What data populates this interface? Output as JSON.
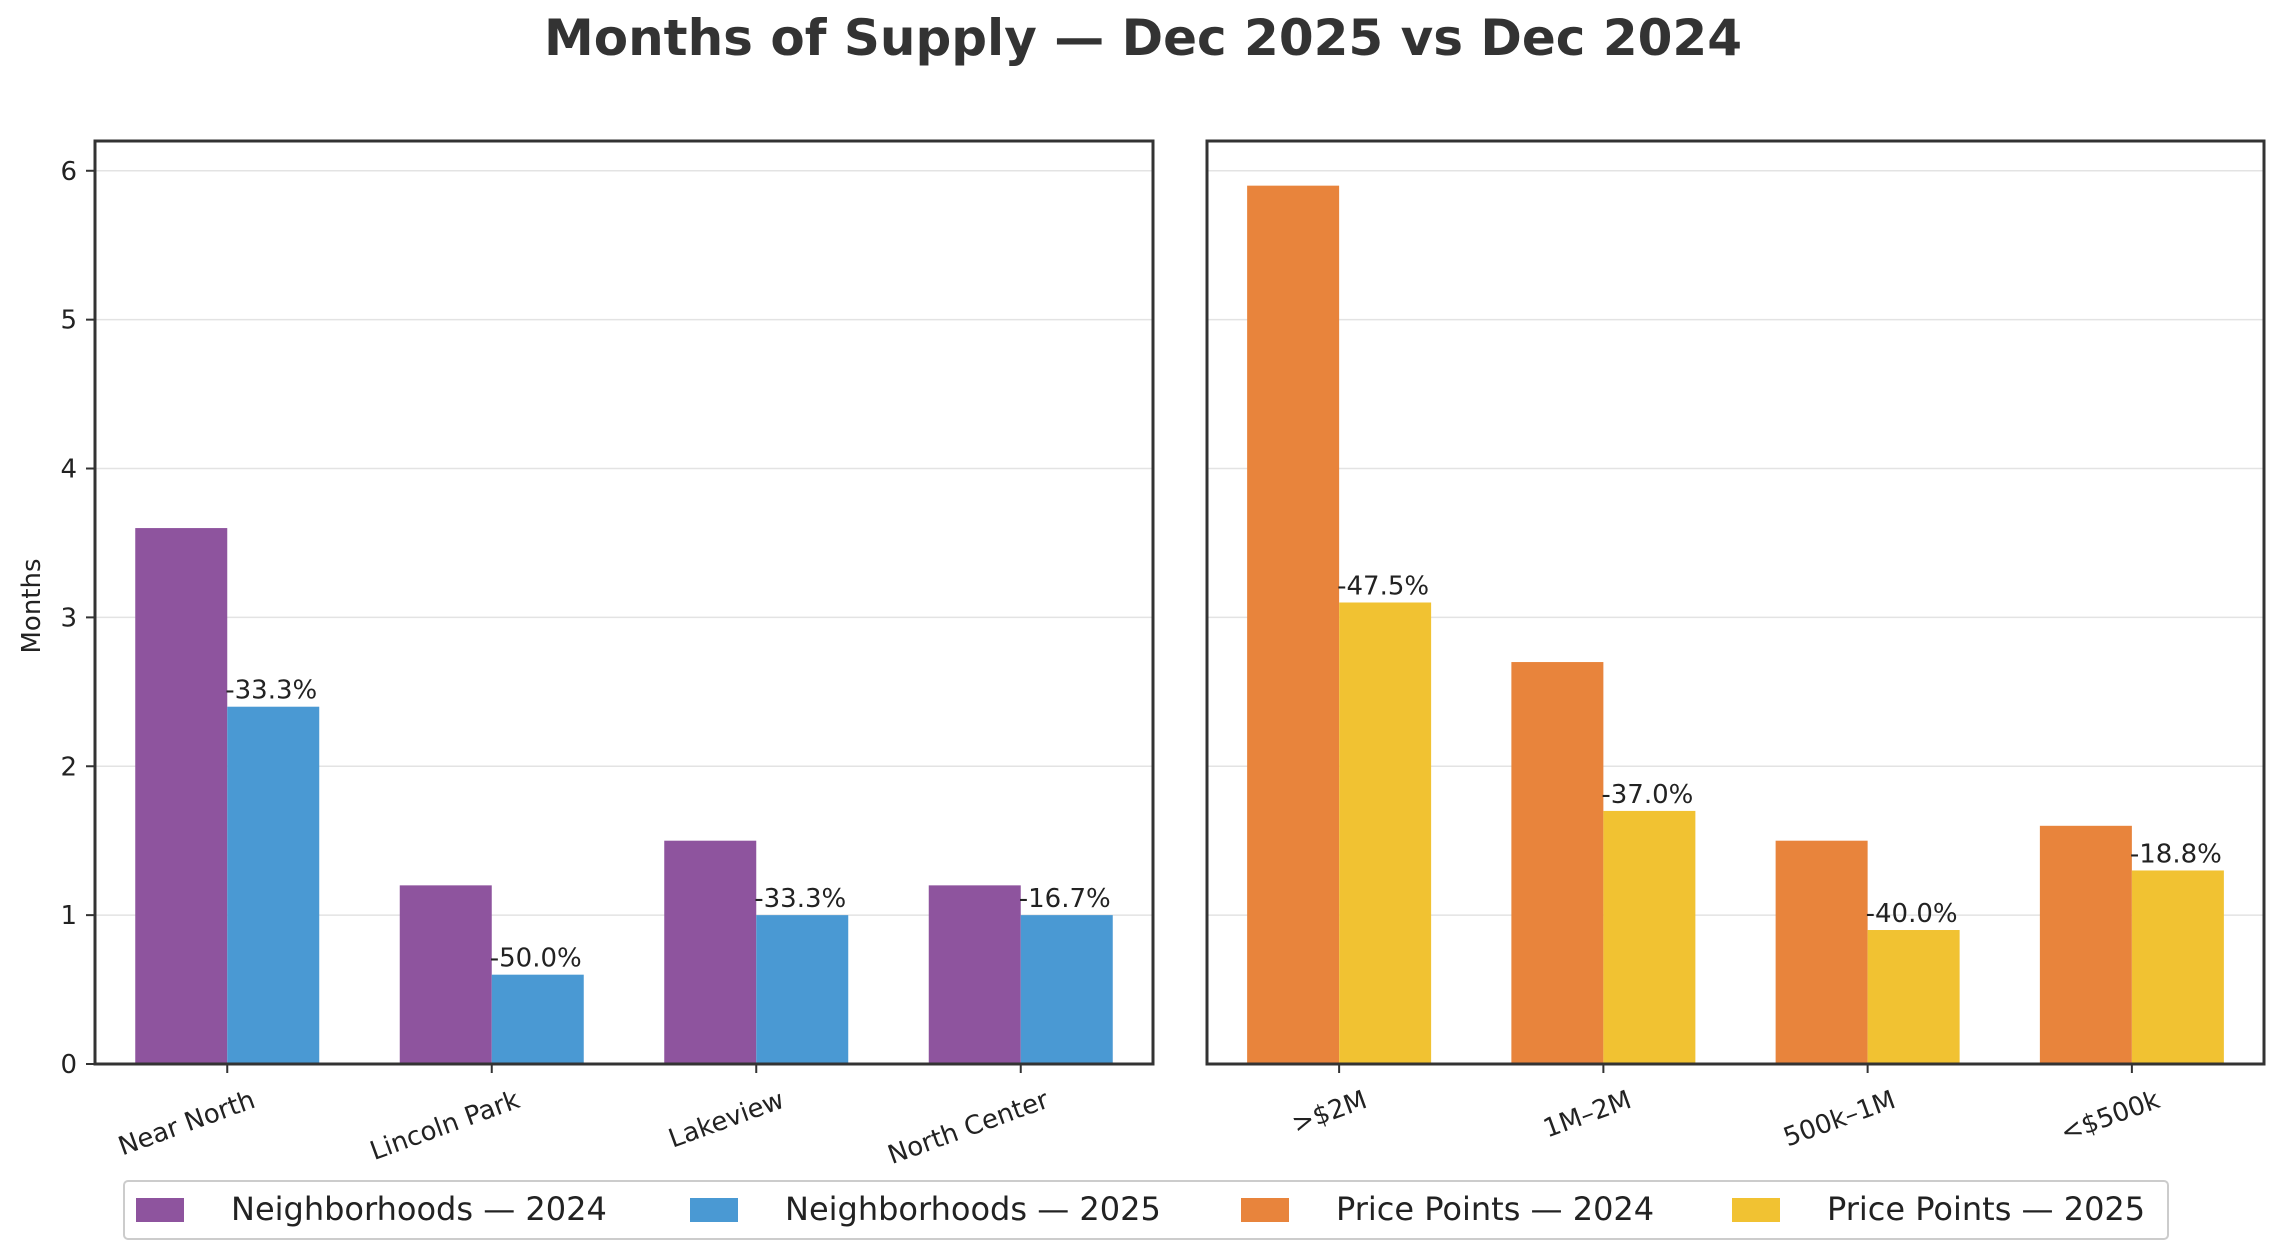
{
  "chart_data": {
    "type": "bar",
    "title": "Months of Supply — Dec 2025 vs Dec 2024",
    "ylabel": "Months",
    "ylim": [
      0,
      6.2
    ],
    "yticks": [
      "0",
      "1",
      "2",
      "3",
      "4",
      "5",
      "6"
    ],
    "grid": true,
    "legend_position": "bottom",
    "panels": [
      {
        "name": "neighborhoods",
        "categories": [
          "Near North",
          "Lincoln Park",
          "Lakeview",
          "North Center"
        ],
        "series": [
          {
            "name": "Neighborhoods — 2024",
            "color": "#8e549e",
            "values": [
              3.6,
              1.2,
              1.5,
              1.2
            ]
          },
          {
            "name": "Neighborhoods — 2025",
            "color": "#4a99d3",
            "values": [
              2.4,
              0.6,
              1.0,
              1.0
            ]
          }
        ],
        "labels": [
          "-33.3%",
          "-50.0%",
          "-33.3%",
          "-16.7%"
        ]
      },
      {
        "name": "price-points",
        "categories": [
          ">$2M",
          "1M–2M",
          "500k–1M",
          "<$500k"
        ],
        "series": [
          {
            "name": "Price Points — 2024",
            "color": "#e8843c",
            "values": [
              5.9,
              2.7,
              1.5,
              1.6
            ]
          },
          {
            "name": "Price Points — 2025",
            "color": "#f1c232",
            "values": [
              3.1,
              1.7,
              0.9,
              1.3
            ]
          }
        ],
        "labels": [
          "-47.5%",
          "-37.0%",
          "-40.0%",
          "-18.8%"
        ]
      }
    ]
  }
}
